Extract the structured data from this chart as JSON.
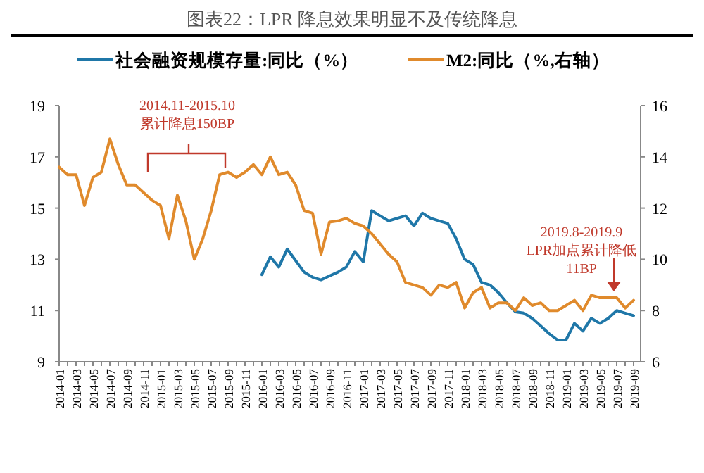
{
  "chart_data": {
    "type": "line",
    "title": "图表22：LPR 降息效果明显不及传统降息",
    "categories": [
      "2014-01",
      null,
      "2014-03",
      null,
      "2014-05",
      null,
      "2014-07",
      null,
      "2014-09",
      null,
      "2014-11",
      null,
      "2015-01",
      null,
      "2015-03",
      null,
      "2015-05",
      null,
      "2015-07",
      null,
      "2015-09",
      null,
      "2015-11",
      null,
      "2016-01",
      null,
      "2016-03",
      null,
      "2016-05",
      null,
      "2016-07",
      null,
      "2016-09",
      null,
      "2016-11",
      null,
      "2017-01",
      null,
      "2017-03",
      null,
      "2017-05",
      null,
      "2017-07",
      null,
      "2017-09",
      null,
      "2017-11",
      null,
      "2018-01",
      null,
      "2018-03",
      null,
      "2018-05",
      null,
      "2018-07",
      null,
      "2018-09",
      null,
      "2018-11",
      null,
      "2019-01",
      null,
      "2019-03",
      null,
      "2019-05",
      null,
      "2019-07",
      null,
      "2019-09"
    ],
    "series": [
      {
        "name": "社会融资规模存量:同比（%）",
        "color": "#1f77a8",
        "values": [
          null,
          null,
          null,
          null,
          null,
          null,
          null,
          null,
          null,
          null,
          null,
          null,
          null,
          null,
          null,
          null,
          null,
          null,
          null,
          null,
          null,
          null,
          null,
          null,
          12.4,
          13.1,
          12.7,
          13.4,
          12.95,
          12.5,
          12.3,
          12.2,
          12.35,
          12.5,
          12.7,
          13.3,
          12.9,
          14.9,
          14.7,
          14.5,
          14.6,
          14.7,
          14.3,
          14.8,
          14.6,
          14.5,
          14.4,
          13.8,
          13.0,
          12.8,
          12.1,
          12.0,
          11.7,
          11.3,
          10.95,
          10.9,
          10.7,
          10.4,
          10.1,
          9.85,
          9.85,
          10.5,
          10.2,
          10.7,
          10.5,
          10.7,
          11.0,
          10.9,
          10.8
        ]
      },
      {
        "name": "M2:同比（%,右轴）",
        "color": "#e08a2c",
        "axis": "y2",
        "values": [
          13.6,
          13.3,
          13.3,
          12.1,
          13.2,
          13.4,
          14.7,
          13.7,
          12.9,
          12.9,
          12.6,
          12.3,
          12.1,
          10.8,
          12.5,
          11.5,
          10.0,
          10.8,
          11.9,
          13.3,
          13.4,
          13.2,
          13.4,
          13.7,
          13.3,
          14.0,
          13.3,
          13.4,
          12.9,
          11.9,
          11.8,
          10.2,
          11.45,
          11.5,
          11.6,
          11.4,
          11.3,
          11.0,
          10.6,
          10.2,
          9.9,
          9.1,
          9.0,
          8.9,
          8.6,
          9.0,
          8.9,
          9.1,
          8.1,
          8.7,
          8.9,
          8.1,
          8.3,
          8.3,
          8.0,
          8.5,
          8.2,
          8.3,
          8.0,
          8.0,
          8.2,
          8.4,
          8.0,
          8.6,
          8.5,
          8.5,
          8.5,
          8.1,
          8.4
        ]
      }
    ],
    "ylim": [
      9,
      19
    ],
    "yticks": [
      9,
      11,
      13,
      15,
      17,
      19
    ],
    "y2lim": [
      6,
      16
    ],
    "y2ticks": [
      6,
      8,
      10,
      12,
      14,
      16
    ],
    "legend": "top",
    "grid": false,
    "annotations": [
      "2014.11-2015.10\n累计降息150BP",
      "2019.8-2019.9\nLPR加点累计降低\n11BP"
    ]
  }
}
